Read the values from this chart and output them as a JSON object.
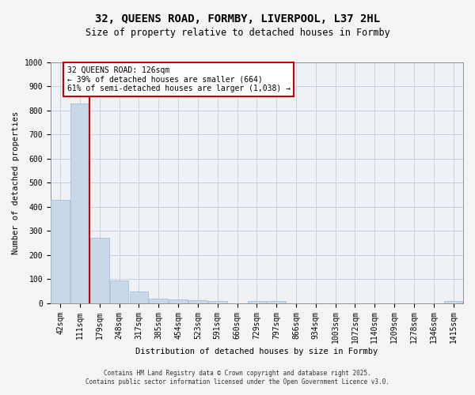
{
  "title": "32, QUEENS ROAD, FORMBY, LIVERPOOL, L37 2HL",
  "subtitle": "Size of property relative to detached houses in Formby",
  "xlabel": "Distribution of detached houses by size in Formby",
  "ylabel": "Number of detached properties",
  "bar_color": "#c8d8e8",
  "bar_edge_color": "#a0b8d0",
  "background_color": "#eef2f7",
  "grid_color": "#c8d0dc",
  "vline_color": "#cc0000",
  "annotation_box_color": "#cc0000",
  "annotation_text": "32 QUEENS ROAD: 126sqm\n← 39% of detached houses are smaller (664)\n61% of semi-detached houses are larger (1,038) →",
  "categories": [
    "42sqm",
    "111sqm",
    "179sqm",
    "248sqm",
    "317sqm",
    "385sqm",
    "454sqm",
    "523sqm",
    "591sqm",
    "660sqm",
    "729sqm",
    "797sqm",
    "866sqm",
    "934sqm",
    "1003sqm",
    "1072sqm",
    "1140sqm",
    "1209sqm",
    "1278sqm",
    "1346sqm",
    "1415sqm"
  ],
  "values": [
    430,
    830,
    270,
    95,
    47,
    20,
    15,
    12,
    8,
    0,
    10,
    10,
    0,
    0,
    0,
    0,
    0,
    0,
    0,
    0,
    10
  ],
  "ylim": [
    0,
    1000
  ],
  "yticks": [
    0,
    100,
    200,
    300,
    400,
    500,
    600,
    700,
    800,
    900,
    1000
  ],
  "footer_text": "Contains HM Land Registry data © Crown copyright and database right 2025.\nContains public sector information licensed under the Open Government Licence v3.0.",
  "title_fontsize": 10,
  "subtitle_fontsize": 8.5,
  "axis_label_fontsize": 7.5,
  "tick_fontsize": 7,
  "annotation_fontsize": 7,
  "footer_fontsize": 5.5
}
